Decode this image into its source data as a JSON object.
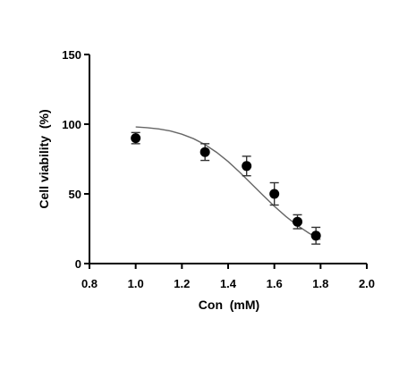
{
  "chart_data": {
    "type": "scatter",
    "title": "",
    "xlabel": "Con  (mM)",
    "ylabel": "Cell viability  (%)",
    "xlim": [
      0.8,
      2.0
    ],
    "ylim": [
      0,
      150
    ],
    "x_ticks": [
      0.8,
      1.0,
      1.2,
      1.4,
      1.6,
      1.8,
      2.0
    ],
    "x_tick_labels": [
      "0.8",
      "1.0",
      "1.2",
      "1.4",
      "1.6",
      "1.8",
      "2.0"
    ],
    "y_ticks": [
      0,
      50,
      100,
      150
    ],
    "y_tick_labels": [
      "0",
      "50",
      "100",
      "150"
    ],
    "grid": false,
    "series": [
      {
        "x": [
          1.0,
          1.3,
          1.48,
          1.6,
          1.7,
          1.78
        ],
        "y": [
          90,
          80,
          70,
          50,
          30,
          20
        ],
        "error": [
          4,
          6,
          7,
          8,
          5,
          6
        ],
        "color": "#000000"
      }
    ],
    "fit_curve": {
      "model": "sigmoidal dose-response",
      "x": [
        1.0,
        1.05,
        1.1,
        1.15,
        1.2,
        1.25,
        1.3,
        1.35,
        1.4,
        1.45,
        1.5,
        1.55,
        1.6,
        1.65,
        1.7,
        1.75,
        1.8
      ],
      "y": [
        98,
        97.5,
        96.6,
        95.1,
        92.8,
        89.6,
        85.3,
        79.8,
        73.2,
        65.6,
        57.4,
        49.1,
        41.1,
        33.8,
        27.3,
        21.8,
        17.2
      ],
      "color": "#666666"
    }
  }
}
